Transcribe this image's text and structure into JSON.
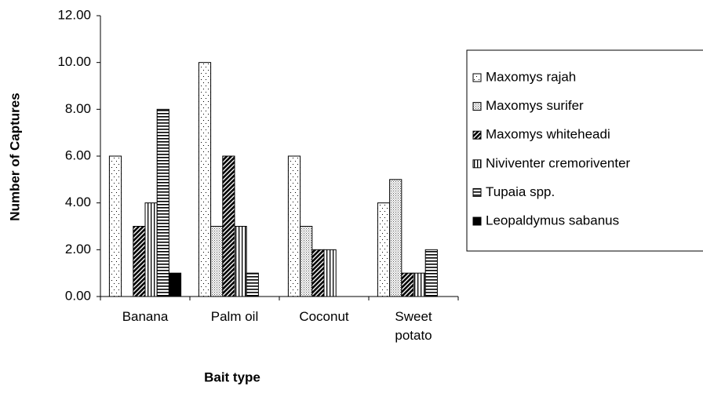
{
  "chart_data": {
    "type": "bar",
    "y_label": "Number of Captures",
    "x_label": "Bait type",
    "categories": [
      "Banana",
      "Palm oil",
      "Coconut",
      "Sweet potato"
    ],
    "series": [
      {
        "name": "Maxomys rajah",
        "pattern": "sparse-dots",
        "values": [
          6,
          10,
          6,
          4
        ]
      },
      {
        "name": "Maxomys surifer",
        "pattern": "dense-dots",
        "values": [
          0,
          3,
          3,
          5
        ]
      },
      {
        "name": "Maxomys whiteheadi",
        "pattern": "diagonal",
        "values": [
          3,
          6,
          2,
          1
        ]
      },
      {
        "name": "Niviventer cremoriventer",
        "pattern": "vertical",
        "values": [
          4,
          3,
          2,
          1
        ]
      },
      {
        "name": "Tupaia spp.",
        "pattern": "horizontal",
        "values": [
          8,
          1,
          0,
          2
        ]
      },
      {
        "name": "Leopaldymus sabanus",
        "pattern": "solid",
        "values": [
          1,
          0,
          0,
          0
        ]
      }
    ],
    "ylim": [
      0,
      12
    ],
    "yticks": [
      {
        "value": 0,
        "label": "0.00"
      },
      {
        "value": 2,
        "label": "2.00"
      },
      {
        "value": 4,
        "label": "4.00"
      },
      {
        "value": 6,
        "label": "6.00"
      },
      {
        "value": 8,
        "label": "8.00"
      },
      {
        "value": 10,
        "label": "10.00"
      },
      {
        "value": 12,
        "label": "12.00"
      }
    ],
    "legend": "right"
  }
}
